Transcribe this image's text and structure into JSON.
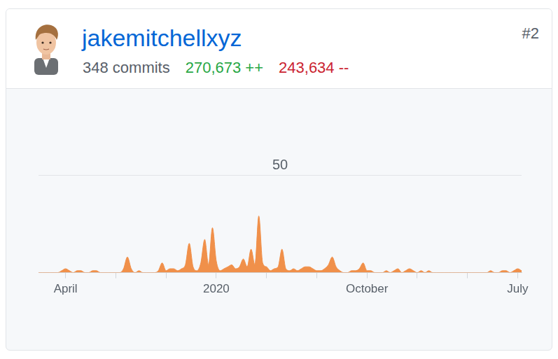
{
  "card": {
    "user": "jakemitchellxyz",
    "commits": "348 commits",
    "additions": "270,673 ++",
    "deletions": "243,634 --",
    "rank": "#2"
  },
  "chart_data": {
    "type": "area",
    "color": "#f0904a",
    "grid": true,
    "ylim": [
      0,
      50
    ],
    "yticks": [
      50
    ],
    "categories": [
      null,
      null,
      null,
      null,
      null,
      null,
      null,
      "April",
      null,
      null,
      null,
      null,
      null,
      null,
      null,
      null,
      null,
      null,
      null,
      null,
      null,
      null,
      null,
      null,
      null,
      null,
      null,
      null,
      null,
      null,
      null,
      null,
      null,
      null,
      null,
      null,
      null,
      null,
      null,
      null,
      null,
      null,
      null,
      null,
      null,
      null,
      "2020",
      null,
      null,
      null,
      null,
      null,
      null,
      null,
      null,
      null,
      null,
      null,
      null,
      null,
      null,
      null,
      null,
      null,
      null,
      null,
      null,
      null,
      null,
      null,
      null,
      null,
      null,
      null,
      null,
      null,
      null,
      null,
      null,
      null,
      null,
      null,
      null,
      null,
      null,
      "October",
      null,
      null,
      null,
      null,
      null,
      null,
      null,
      null,
      null,
      null,
      null,
      null,
      null,
      null,
      null,
      null,
      null,
      null,
      null,
      null,
      null,
      null,
      null,
      null,
      null,
      null,
      null,
      null,
      null,
      null,
      null,
      null,
      null,
      null,
      null,
      null,
      null,
      null,
      "July",
      null
    ],
    "values": [
      0,
      0,
      0,
      0,
      0,
      0,
      1,
      2,
      1,
      0,
      1,
      1,
      0,
      0,
      1,
      1,
      0,
      0,
      0,
      0,
      0,
      0,
      2,
      8,
      2,
      0,
      1,
      0,
      0,
      0,
      0,
      1,
      5,
      1,
      2,
      2,
      1,
      2,
      4,
      15,
      3,
      1,
      5,
      17,
      4,
      23,
      6,
      1,
      2,
      3,
      4,
      2,
      3,
      7,
      3,
      12,
      4,
      29,
      5,
      3,
      1,
      2,
      3,
      12,
      2,
      1,
      2,
      1,
      2,
      3,
      3,
      2,
      1,
      1,
      2,
      4,
      8,
      3,
      1,
      0,
      0,
      1,
      1,
      2,
      5,
      1,
      1,
      0,
      0,
      0,
      1,
      0,
      1,
      2,
      0,
      1,
      2,
      1,
      0,
      1,
      0,
      1,
      0,
      0,
      0,
      0,
      0,
      0,
      0,
      0,
      0,
      0,
      0,
      0,
      0,
      0,
      0,
      1,
      0,
      0,
      1,
      1,
      0,
      1,
      2,
      1
    ]
  }
}
